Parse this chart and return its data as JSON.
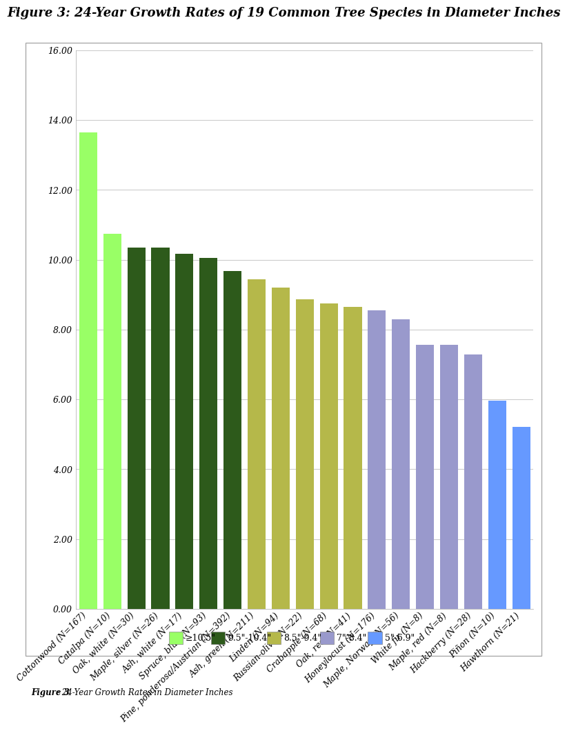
{
  "title": "Figure 3: 24-Year Growth Rates of 19 Common Tree Species in Diameter Inches",
  "caption_bold": "Figure 3",
  "caption_normal": ": 24-Year Growth Rates in Diameter Inches",
  "categories": [
    "Cottonwood (N=167)",
    "Catalpa (N=10)",
    "Oak, white (N=30)",
    "Maple, silver (N=26)",
    "Ash, white (N=17)",
    "Spruce, blue (N=93)",
    "Pine, ponderosa/Austrian (N=392)",
    "Ash, green (N=211)",
    "Linden (N=94)",
    "Russian-olive (N=22)",
    "Crabapple (N=68)",
    "Oak, red (N=41)",
    "Honeylocust (N=176)",
    "Maple, Norway (N=56)",
    "White fir (N=8)",
    "Maple, red (N=8)",
    "Hackberry (N=28)",
    "Piñon (N=10)",
    "Hawthorn (N=21)"
  ],
  "values": [
    13.65,
    10.75,
    10.35,
    10.35,
    10.18,
    10.05,
    9.67,
    9.44,
    9.21,
    8.87,
    8.74,
    8.65,
    8.55,
    8.29,
    7.57,
    7.57,
    7.28,
    5.97,
    5.22
  ],
  "colors": [
    "#99ff66",
    "#99ff66",
    "#2d5a1b",
    "#2d5a1b",
    "#2d5a1b",
    "#2d5a1b",
    "#2d5a1b",
    "#b5b84a",
    "#b5b84a",
    "#b5b84a",
    "#b5b84a",
    "#b5b84a",
    "#9999cc",
    "#9999cc",
    "#9999cc",
    "#9999cc",
    "#9999cc",
    "#6699ff",
    "#6699ff"
  ],
  "legend_labels": [
    "≥10.5\"",
    "9.5\"-10.4\"",
    "8.5\"-9.4\"",
    "7\"-8.4\"",
    "5\"-6.9\""
  ],
  "legend_colors": [
    "#99ff66",
    "#2d5a1b",
    "#b5b84a",
    "#9999cc",
    "#6699ff"
  ],
  "ylim": [
    0,
    16
  ],
  "yticks": [
    0.0,
    2.0,
    4.0,
    6.0,
    8.0,
    10.0,
    12.0,
    14.0,
    16.0
  ],
  "background_color": "#ffffff",
  "plot_bg_color": "#ffffff",
  "grid_color": "#cccccc",
  "title_fontsize": 13,
  "tick_fontsize": 9,
  "legend_fontsize": 9,
  "caption_fontsize": 8.5
}
